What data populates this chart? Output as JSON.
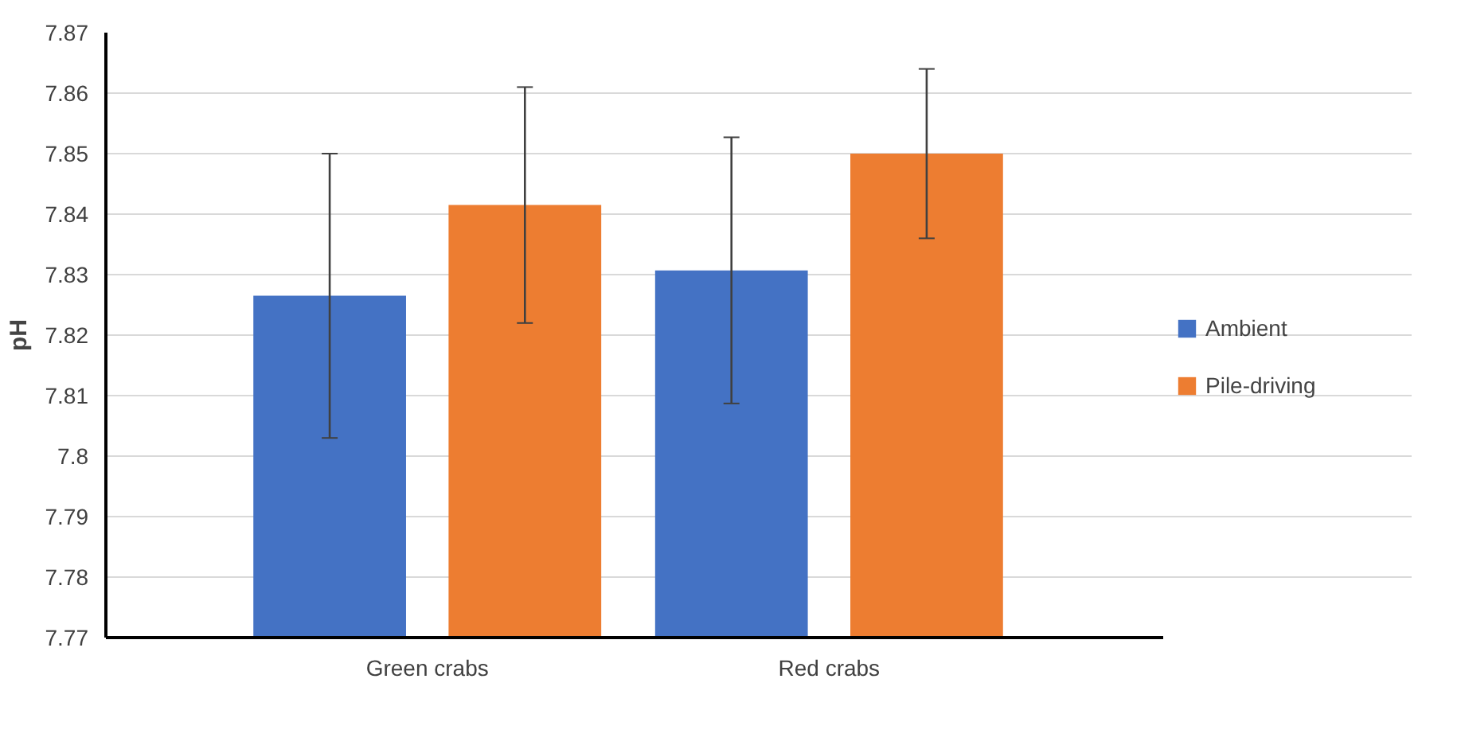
{
  "chart_data": {
    "type": "bar",
    "ylabel": "pH",
    "categories": [
      "Green crabs",
      "Red crabs"
    ],
    "series": [
      {
        "name": "Ambient",
        "color": "#4472c4",
        "values": [
          7.8265,
          7.8307
        ],
        "errors": [
          0.0235,
          0.022
        ]
      },
      {
        "name": "Pile-driving",
        "color": "#ed7d31",
        "values": [
          7.8415,
          7.85
        ],
        "errors": [
          0.0195,
          0.014
        ]
      }
    ],
    "ylim": [
      7.77,
      7.87
    ],
    "yticks": [
      7.77,
      7.78,
      7.79,
      7.8,
      7.81,
      7.82,
      7.83,
      7.84,
      7.85,
      7.86,
      7.87
    ],
    "grid": "y",
    "legend": "right"
  }
}
